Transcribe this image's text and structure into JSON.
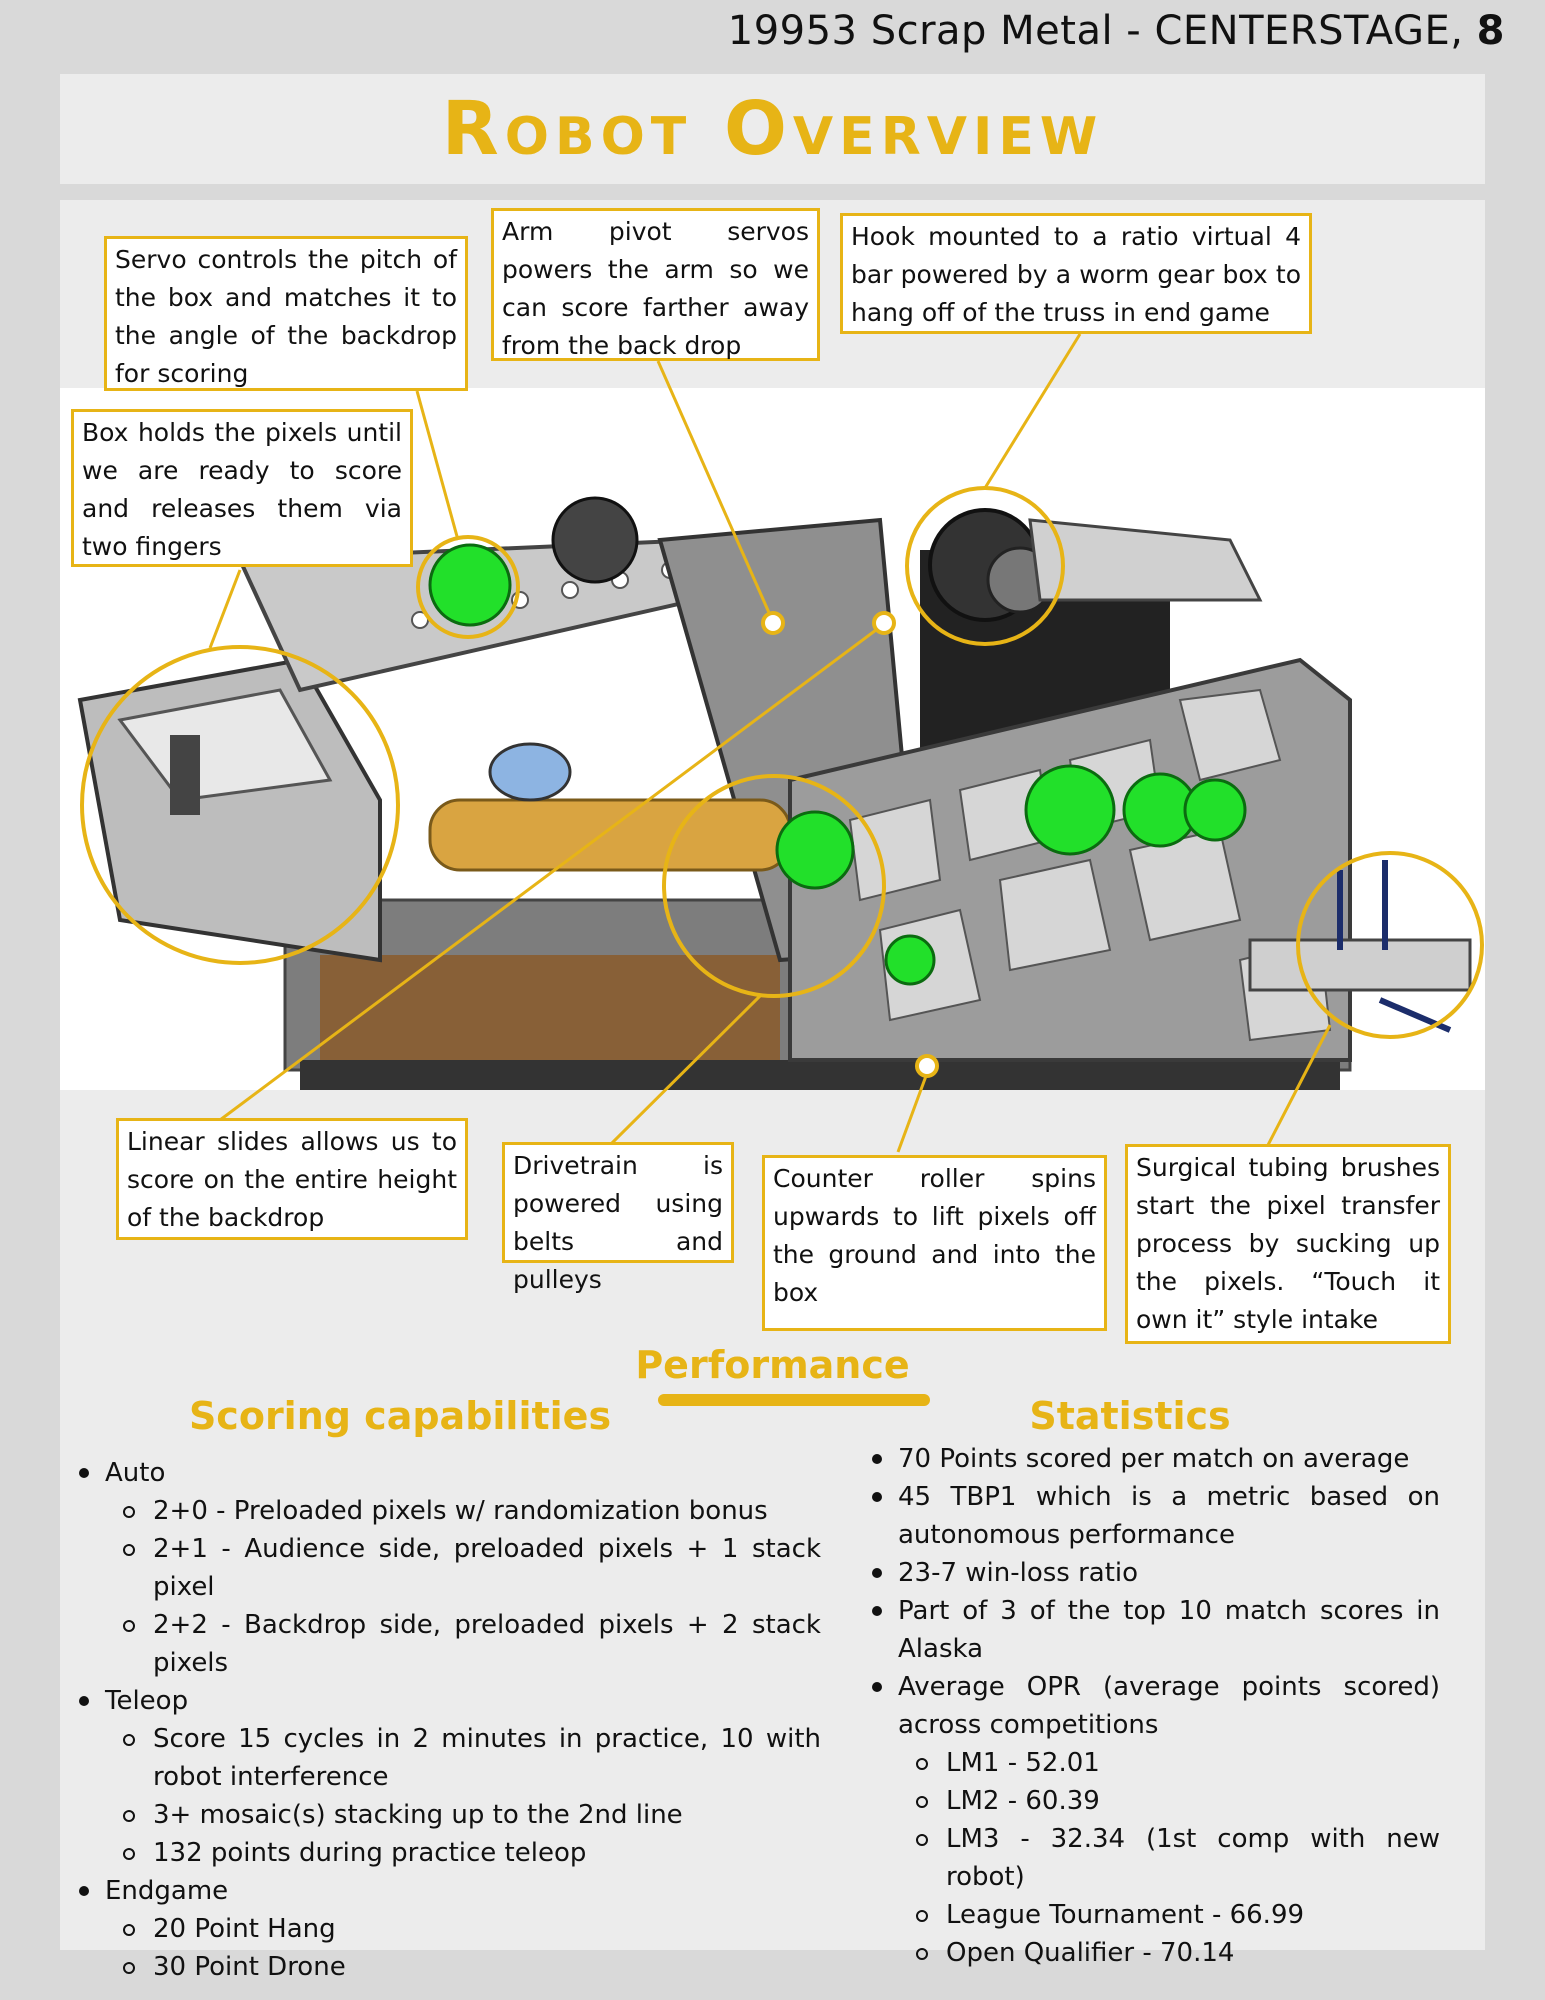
{
  "header": {
    "text": "19953 Scrap Metal - CENTERSTAGE,",
    "page_number": "8"
  },
  "title": "Robot Overview",
  "callouts": {
    "servo_pitch": "Servo controls the pitch of the box and matches it to the angle of the backdrop for scoring",
    "arm_pivot": "Arm pivot servos powers the arm so we can score farther away from the back drop",
    "hook": "Hook mounted to a ratio virtual 4 bar powered by a worm gear box to hang off of the truss in end game",
    "box": "Box holds the pixels until we are ready to score and releases them via two fingers",
    "linear_slides": "Linear slides allows us to score on the entire height of the backdrop",
    "drivetrain": "Drivetrain is powered using belts and pulleys",
    "counter_roller": "Counter roller spins upwards to lift pixels off the ground and into the box",
    "surgical_tubing": "Surgical tubing brushes start the pixel transfer process by sucking up the pixels. “Touch it own it” style intake"
  },
  "performance": {
    "title": "Performance",
    "scoring": {
      "title": "Scoring capabilities",
      "items": [
        {
          "level": 1,
          "text": "Auto"
        },
        {
          "level": 2,
          "text": "2+0 - Preloaded pixels w/ randomization bonus"
        },
        {
          "level": 2,
          "text": "2+1 - Audience side, preloaded pixels + 1 stack pixel"
        },
        {
          "level": 2,
          "text": "2+2 - Backdrop side, preloaded pixels + 2 stack pixels"
        },
        {
          "level": 1,
          "text": "Teleop"
        },
        {
          "level": 2,
          "text": "Score 15 cycles in 2 minutes in practice, 10 with robot interference"
        },
        {
          "level": 2,
          "text": "3+ mosaic(s) stacking up to the 2nd line"
        },
        {
          "level": 2,
          "text": "132 points during practice teleop"
        },
        {
          "level": 1,
          "text": "Endgame"
        },
        {
          "level": 2,
          "text": "20 Point Hang"
        },
        {
          "level": 2,
          "text": "30 Point Drone"
        }
      ]
    },
    "statistics": {
      "title": "Statistics",
      "items": [
        {
          "level": 1,
          "text": "70 Points scored per match on average"
        },
        {
          "level": 1,
          "text": "45 TBP1 which is a metric based on autonomous performance"
        },
        {
          "level": 1,
          "text": "23-7 win-loss ratio"
        },
        {
          "level": 1,
          "text": "Part of 3 of the top 10 match scores in Alaska"
        },
        {
          "level": 1,
          "text": "Average OPR (average points scored) across competitions"
        },
        {
          "level": 2,
          "text": "LM1 - 52.01"
        },
        {
          "level": 2,
          "text": "LM2 - 60.39"
        },
        {
          "level": 2,
          "text": "LM3 - 32.34 (1st comp with new robot)"
        },
        {
          "level": 2,
          "text": "League Tournament - 66.99"
        },
        {
          "level": 2,
          "text": "Open Qualifier - 70.14"
        }
      ]
    }
  },
  "colors": {
    "accent": "#e7b416",
    "panel": "#ececec",
    "page": "#d9d9d9",
    "robot_gray": "#8c8c8c",
    "robot_green": "#22e02a",
    "robot_gold": "#d9a441"
  },
  "icons": {
    "bullet": "filled-circle",
    "sub_bullet": "hollow-circle"
  }
}
